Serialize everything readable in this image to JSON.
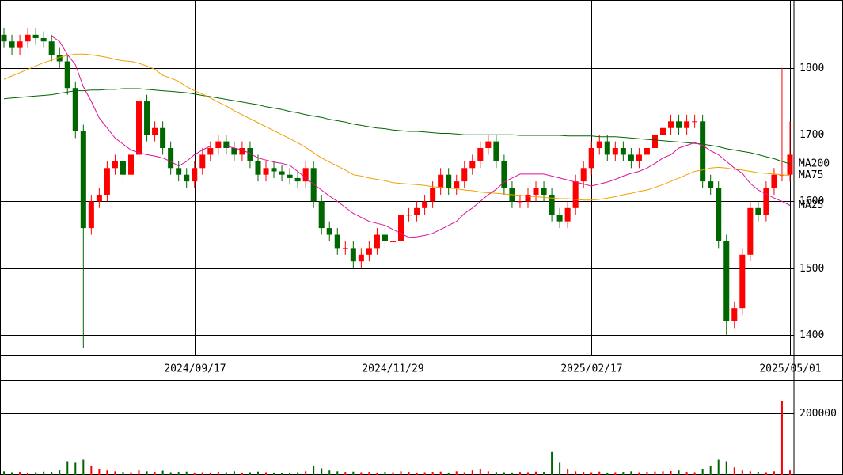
{
  "chart_data": {
    "type": "candlestick",
    "categories": [
      null,
      null,
      null,
      null,
      null,
      null,
      null,
      null,
      null,
      null,
      null,
      null,
      null,
      null,
      null,
      null,
      null,
      null,
      null,
      null,
      null,
      null,
      null,
      null,
      "2024/09/17",
      null,
      null,
      null,
      null,
      null,
      null,
      null,
      null,
      null,
      null,
      null,
      null,
      null,
      null,
      null,
      null,
      null,
      null,
      null,
      null,
      null,
      null,
      null,
      null,
      "2024/11/29",
      null,
      null,
      null,
      null,
      null,
      null,
      null,
      null,
      null,
      null,
      null,
      null,
      null,
      null,
      null,
      null,
      null,
      null,
      null,
      null,
      null,
      null,
      null,
      null,
      "2025/02/17",
      null,
      null,
      null,
      null,
      null,
      null,
      null,
      null,
      null,
      null,
      null,
      null,
      null,
      null,
      null,
      null,
      null,
      null,
      null,
      null,
      null,
      null,
      null,
      null,
      "2025/05/01"
    ],
    "open": [
      1850,
      1840,
      1830,
      1840,
      1850,
      1845,
      1840,
      1820,
      1810,
      1770,
      1705,
      1560,
      1600,
      1610,
      1650,
      1660,
      1640,
      1670,
      1750,
      1700,
      1710,
      1680,
      1650,
      1640,
      1630,
      1650,
      1670,
      1680,
      1690,
      1680,
      1670,
      1680,
      1660,
      1640,
      1650,
      1645,
      1640,
      1635,
      1630,
      1650,
      1600,
      1560,
      1550,
      1530,
      1530,
      1510,
      1520,
      1530,
      1550,
      1540,
      1540,
      1580,
      1580,
      1590,
      1600,
      1620,
      1640,
      1620,
      1630,
      1650,
      1660,
      1680,
      1690,
      1660,
      1620,
      1600,
      1600,
      1610,
      1620,
      1610,
      1580,
      1570,
      1590,
      1630,
      1650,
      1680,
      1690,
      1670,
      1680,
      1670,
      1660,
      1670,
      1680,
      1700,
      1710,
      1720,
      1710,
      1720,
      1720,
      1630,
      1620,
      1540,
      1420,
      1440,
      1520,
      1590,
      1580,
      1620,
      1640,
      1640
    ],
    "high": [
      1860,
      1850,
      1850,
      1860,
      1860,
      1855,
      1850,
      1830,
      1820,
      1780,
      1715,
      1610,
      1620,
      1660,
      1670,
      1670,
      1680,
      1760,
      1760,
      1720,
      1720,
      1690,
      1660,
      1650,
      1660,
      1680,
      1690,
      1700,
      1700,
      1690,
      1690,
      1690,
      1670,
      1660,
      1660,
      1655,
      1650,
      1645,
      1660,
      1660,
      1610,
      1570,
      1560,
      1540,
      1540,
      1530,
      1540,
      1560,
      1560,
      1550,
      1590,
      1590,
      1600,
      1610,
      1630,
      1650,
      1650,
      1640,
      1660,
      1670,
      1690,
      1700,
      1700,
      1670,
      1630,
      1610,
      1620,
      1630,
      1630,
      1620,
      1590,
      1600,
      1640,
      1660,
      1690,
      1700,
      1700,
      1690,
      1690,
      1680,
      1680,
      1690,
      1710,
      1720,
      1730,
      1730,
      1730,
      1730,
      1730,
      1640,
      1630,
      1550,
      1450,
      1530,
      1600,
      1600,
      1630,
      1650,
      1800,
      1720
    ],
    "low": [
      1830,
      1820,
      1820,
      1830,
      1835,
      1830,
      1810,
      1800,
      1760,
      1695,
      1380,
      1550,
      1590,
      1600,
      1640,
      1630,
      1630,
      1660,
      1690,
      1690,
      1670,
      1640,
      1630,
      1620,
      1620,
      1640,
      1660,
      1670,
      1670,
      1660,
      1660,
      1650,
      1630,
      1630,
      1635,
      1630,
      1625,
      1620,
      1620,
      1590,
      1550,
      1540,
      1520,
      1520,
      1500,
      1500,
      1510,
      1520,
      1530,
      1530,
      1530,
      1570,
      1570,
      1580,
      1590,
      1610,
      1610,
      1610,
      1620,
      1640,
      1650,
      1670,
      1650,
      1610,
      1590,
      1590,
      1590,
      1600,
      1600,
      1570,
      1560,
      1560,
      1580,
      1620,
      1640,
      1670,
      1660,
      1660,
      1660,
      1650,
      1650,
      1660,
      1670,
      1690,
      1700,
      1700,
      1700,
      1710,
      1620,
      1610,
      1530,
      1400,
      1410,
      1430,
      1510,
      1570,
      1570,
      1610,
      1630,
      1630
    ],
    "close": [
      1840,
      1830,
      1840,
      1850,
      1845,
      1840,
      1820,
      1810,
      1770,
      1705,
      1560,
      1600,
      1610,
      1650,
      1660,
      1640,
      1670,
      1750,
      1700,
      1710,
      1680,
      1650,
      1640,
      1630,
      1650,
      1670,
      1680,
      1690,
      1680,
      1670,
      1680,
      1660,
      1640,
      1650,
      1645,
      1640,
      1635,
      1630,
      1650,
      1600,
      1560,
      1550,
      1530,
      1530,
      1510,
      1520,
      1530,
      1550,
      1540,
      1540,
      1580,
      1580,
      1590,
      1600,
      1620,
      1640,
      1620,
      1630,
      1650,
      1660,
      1680,
      1690,
      1660,
      1620,
      1600,
      1600,
      1610,
      1620,
      1610,
      1580,
      1570,
      1590,
      1630,
      1650,
      1680,
      1690,
      1670,
      1680,
      1670,
      1660,
      1670,
      1680,
      1700,
      1710,
      1720,
      1710,
      1720,
      1720,
      1630,
      1620,
      1540,
      1420,
      1440,
      1520,
      1590,
      1580,
      1620,
      1640,
      1640,
      1670
    ],
    "up_color": "#ff0000",
    "down_color": "#006600",
    "ylim": [
      1369,
      1902
    ],
    "yticks": [
      1400,
      1500,
      1600,
      1700,
      1800
    ],
    "grid": true,
    "series": [
      {
        "name": "MA200",
        "color": "#006600",
        "values": [
          1754,
          1755,
          1756,
          1757,
          1758,
          1759,
          1760,
          1762,
          1764,
          1766,
          1766,
          1767,
          1767,
          1768,
          1768,
          1769,
          1769,
          1769,
          1768,
          1767,
          1766,
          1765,
          1764,
          1763,
          1761,
          1759,
          1757,
          1755,
          1753,
          1751,
          1749,
          1747,
          1745,
          1742,
          1740,
          1738,
          1735,
          1733,
          1730,
          1728,
          1726,
          1723,
          1721,
          1719,
          1716,
          1714,
          1712,
          1710,
          1709,
          1707,
          1706,
          1705,
          1705,
          1704,
          1703,
          1702,
          1702,
          1701,
          1700,
          1700,
          1700,
          1700,
          1700,
          1700,
          1700,
          1699,
          1699,
          1699,
          1699,
          1699,
          1699,
          1698,
          1698,
          1698,
          1698,
          1697,
          1697,
          1697,
          1696,
          1695,
          1694,
          1693,
          1692,
          1691,
          1690,
          1689,
          1688,
          1687,
          1686,
          1684,
          1682,
          1679,
          1677,
          1675,
          1673,
          1670,
          1667,
          1664,
          1660,
          1656
        ]
      },
      {
        "name": "MA75",
        "color": "#f0a000",
        "values": [
          1783,
          1788,
          1793,
          1798,
          1803,
          1808,
          1812,
          1816,
          1819,
          1821,
          1821,
          1820,
          1818,
          1816,
          1813,
          1811,
          1810,
          1807,
          1803,
          1798,
          1789,
          1785,
          1780,
          1772,
          1766,
          1761,
          1755,
          1749,
          1743,
          1736,
          1730,
          1724,
          1718,
          1712,
          1706,
          1700,
          1694,
          1688,
          1681,
          1673,
          1665,
          1659,
          1653,
          1647,
          1640,
          1638,
          1635,
          1633,
          1631,
          1628,
          1627,
          1626,
          1625,
          1624,
          1622,
          1621,
          1620,
          1619,
          1617,
          1616,
          1614,
          1613,
          1612,
          1611,
          1610,
          1609,
          1608,
          1607,
          1606,
          1605,
          1604,
          1604,
          1603,
          1602,
          1602,
          1603,
          1605,
          1607,
          1610,
          1612,
          1615,
          1617,
          1621,
          1625,
          1630,
          1635,
          1640,
          1645,
          1647,
          1650,
          1651,
          1650,
          1648,
          1647,
          1645,
          1643,
          1642,
          1641,
          1640,
          1639
        ]
      },
      {
        "name": "MA25",
        "color": "#dd1199",
        "values": [
          null,
          null,
          null,
          null,
          null,
          null,
          1848,
          1840,
          1820,
          1805,
          1772,
          1750,
          1725,
          1710,
          1695,
          1686,
          1677,
          1673,
          1670,
          1668,
          1665,
          1660,
          1653,
          1660,
          1670,
          1677,
          1683,
          1683,
          1683,
          1680,
          1677,
          1672,
          1665,
          1662,
          1659,
          1657,
          1654,
          1645,
          1635,
          1626,
          1617,
          1608,
          1600,
          1591,
          1582,
          1576,
          1570,
          1567,
          1564,
          1558,
          1552,
          1546,
          1547,
          1549,
          1552,
          1558,
          1564,
          1570,
          1582,
          1590,
          1600,
          1610,
          1618,
          1629,
          1635,
          1641,
          1641,
          1641,
          1641,
          1638,
          1635,
          1632,
          1629,
          1626,
          1623,
          1626,
          1629,
          1633,
          1638,
          1642,
          1645,
          1650,
          1657,
          1665,
          1670,
          1680,
          1684,
          1688,
          1684,
          1676,
          1670,
          1660,
          1650,
          1642,
          1627,
          1617,
          1611,
          1605,
          1600,
          1594
        ]
      }
    ],
    "volume": {
      "values": [
        12000,
        9000,
        10000,
        8000,
        9000,
        11000,
        10000,
        15000,
        45000,
        40000,
        50000,
        30000,
        20000,
        15000,
        12000,
        10000,
        9000,
        15000,
        12000,
        10000,
        14000,
        9000,
        10000,
        11000,
        8000,
        9000,
        8000,
        10000,
        9000,
        12000,
        8000,
        9000,
        11000,
        9000,
        8000,
        7000,
        8000,
        9000,
        12000,
        30000,
        22000,
        15000,
        12000,
        10000,
        11000,
        9000,
        10000,
        8000,
        10000,
        9000,
        12000,
        10000,
        8000,
        9000,
        10000,
        11000,
        8000,
        12000,
        9000,
        15000,
        20000,
        12000,
        10000,
        9000,
        8000,
        10000,
        9000,
        11000,
        10000,
        75000,
        40000,
        20000,
        12000,
        10000,
        9000,
        11000,
        8000,
        9000,
        10000,
        12000,
        9000,
        10000,
        11000,
        12000,
        13000,
        15000,
        10000,
        9000,
        20000,
        30000,
        50000,
        45000,
        25000,
        15000,
        12000,
        10000,
        9000,
        12000,
        240000,
        15000
      ],
      "ylim": [
        0,
        308000
      ],
      "yticks": [
        200000
      ]
    }
  }
}
